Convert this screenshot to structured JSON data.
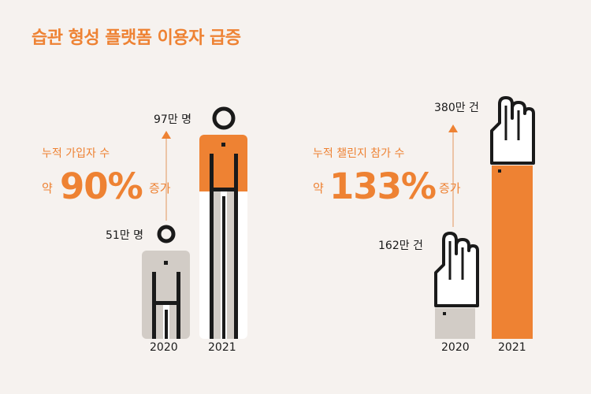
{
  "title": "습관 형성 플랫폼 이용자 급증",
  "left_panel": {
    "caption": "누적 가입자 수",
    "prefix": "약",
    "percent": "90%",
    "suffix": "증가",
    "label_2020": "51만 명",
    "label_2021": "97만 명",
    "year_2020": "2020",
    "year_2021": "2021"
  },
  "right_panel": {
    "caption": "누적 챌린지 참가 수",
    "prefix": "약",
    "percent": "133%",
    "suffix": "증가",
    "label_2020": "162만 건",
    "label_2021": "380만 건",
    "year_2020": "2020",
    "year_2021": "2021"
  },
  "chart_data": [
    {
      "type": "bar",
      "categories": [
        "2020",
        "2021"
      ],
      "values": [
        51,
        97
      ],
      "value_labels": [
        "51만 명",
        "97만 명"
      ],
      "title": "누적 가입자 수",
      "growth": "약 90% 증가"
    },
    {
      "type": "bar",
      "categories": [
        "2020",
        "2021"
      ],
      "values": [
        162,
        380
      ],
      "value_labels": [
        "162만 건",
        "380만 건"
      ],
      "title": "누적 챌린지 참가 수",
      "growth": "약 133% 증가"
    }
  ],
  "colors": {
    "accent": "#ee8233",
    "grey": "#d2ccc6",
    "background": "#f6f2ef",
    "ink": "#1a1a1a"
  }
}
